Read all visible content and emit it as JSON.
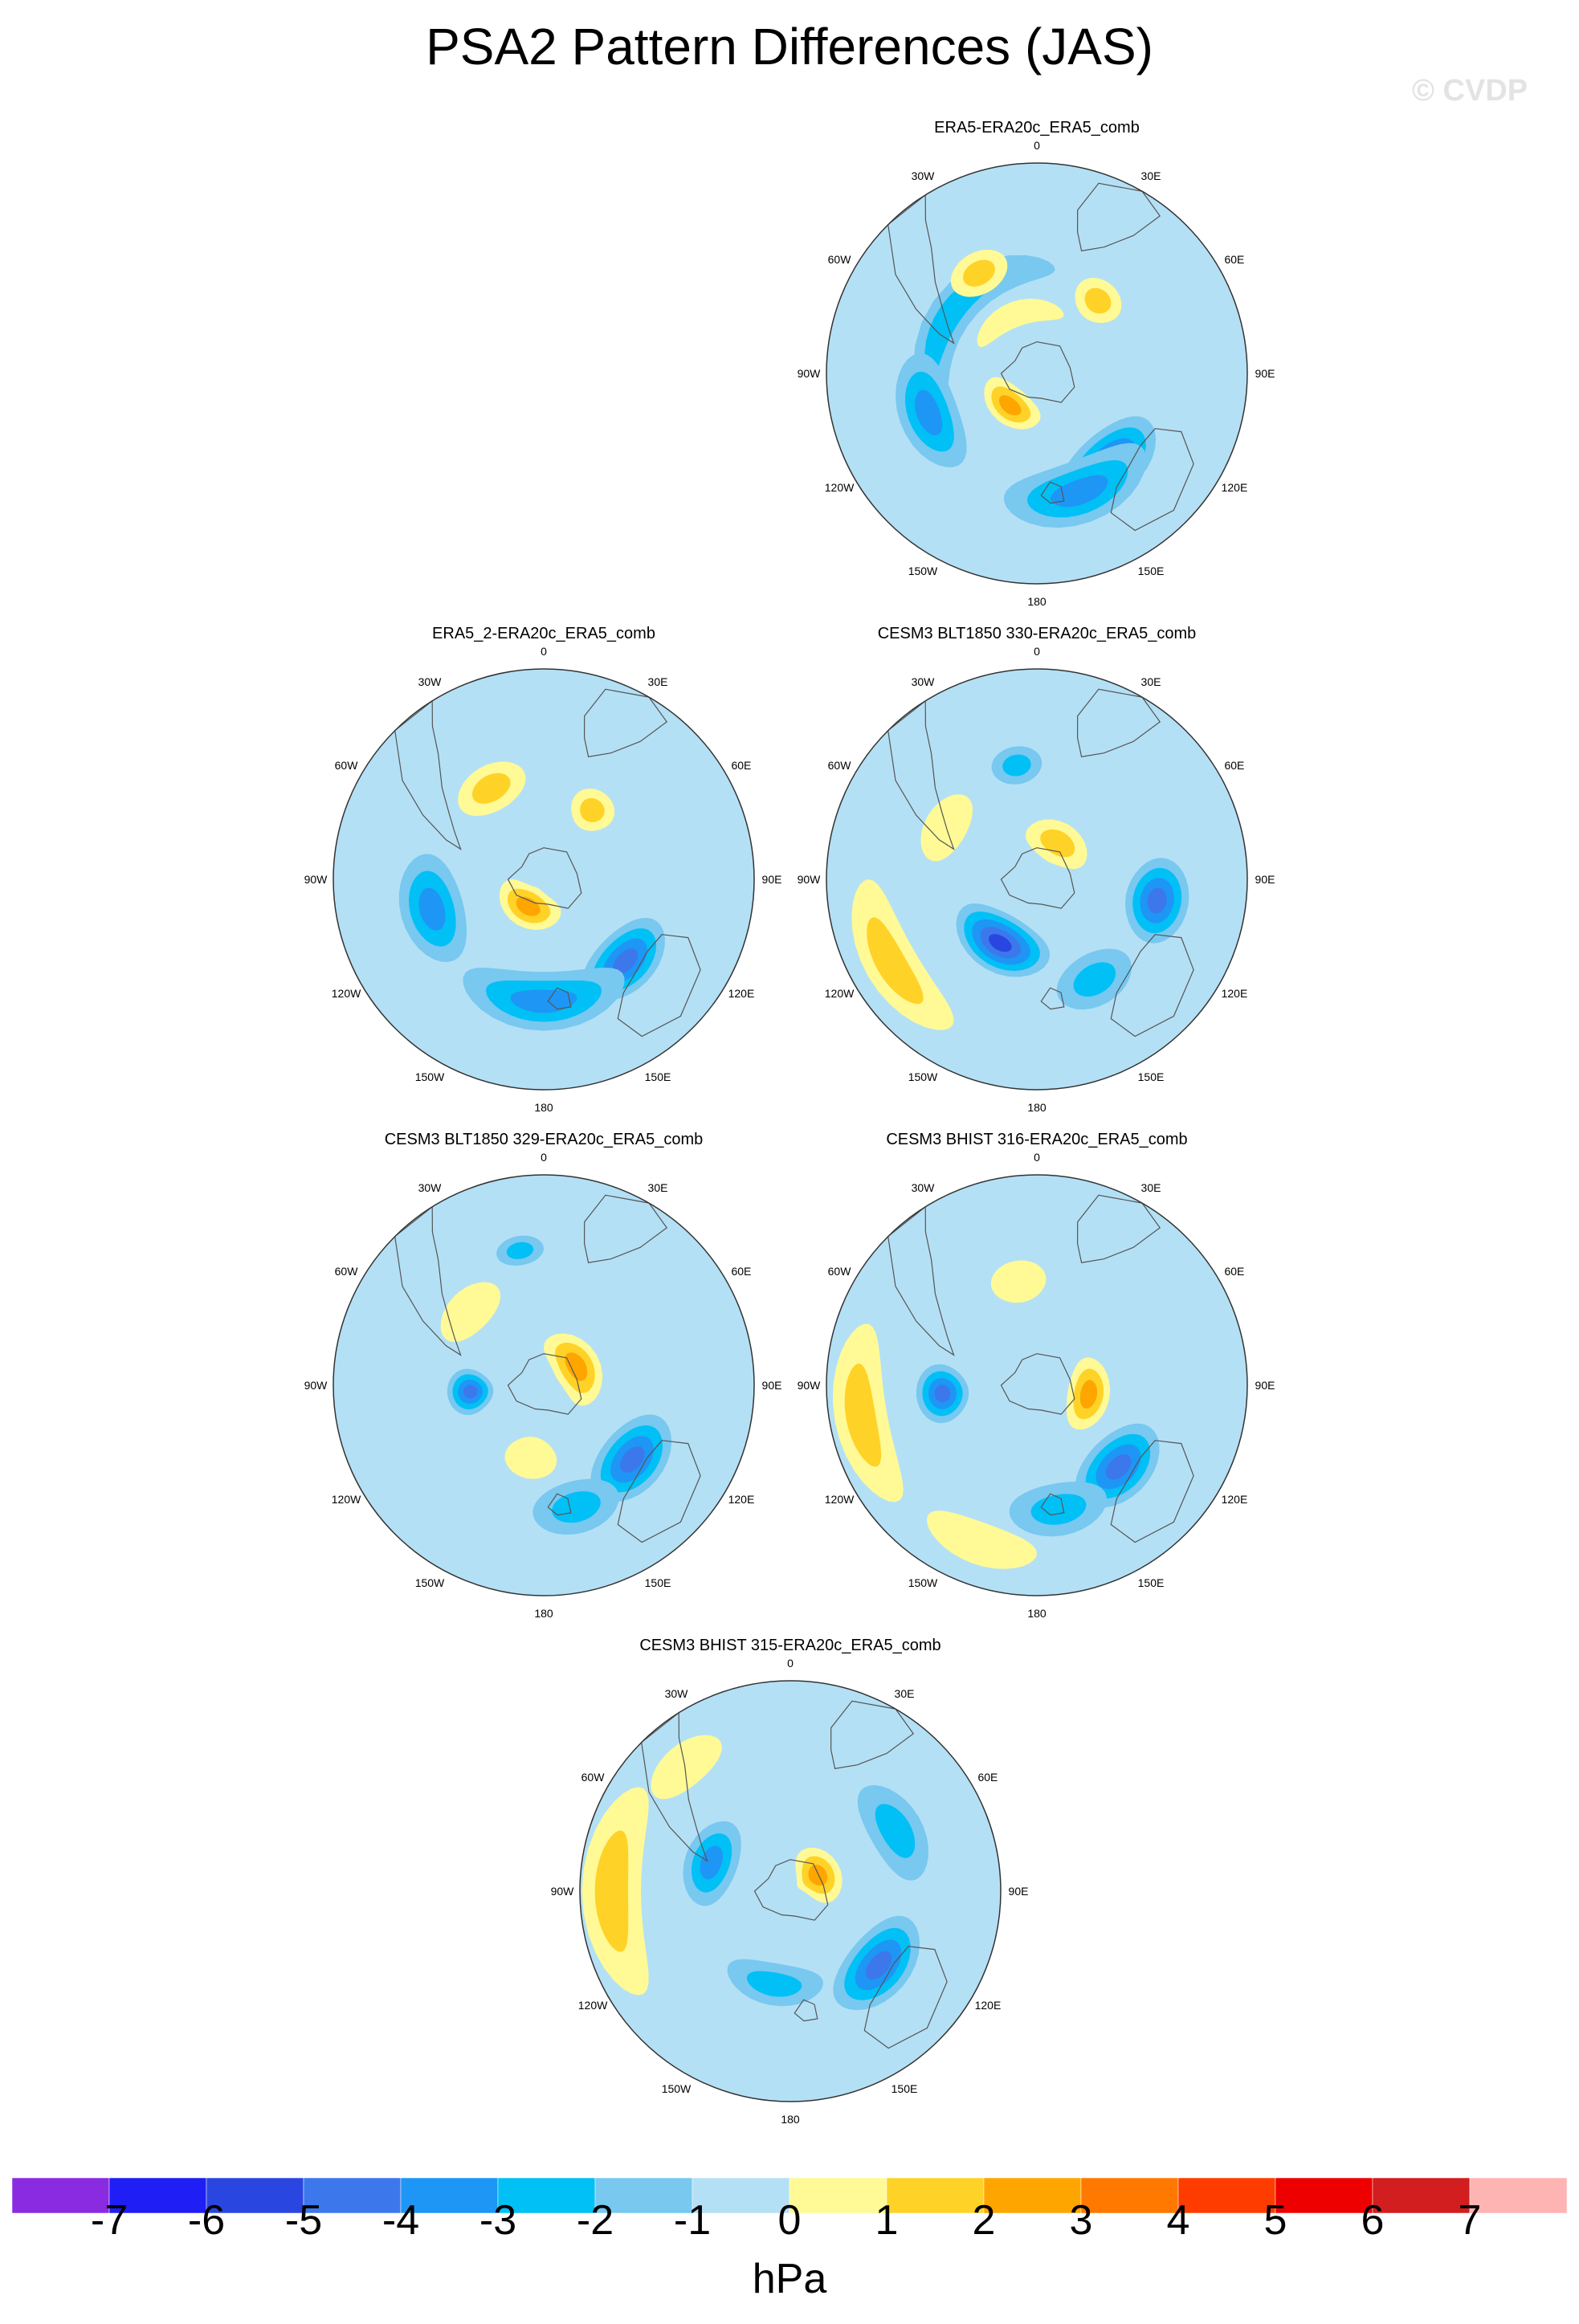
{
  "figure": {
    "title": "PSA2 Pattern Differences (JAS)",
    "watermark": "© CVDP",
    "lon_labels": [
      "0",
      "30E",
      "60E",
      "90E",
      "120E",
      "150E",
      "180",
      "150W",
      "120W",
      "90W",
      "60W",
      "30W"
    ]
  },
  "panels": [
    {
      "title": "ERA5-ERA20c_ERA5_comb",
      "anomalies": [
        {
          "lon": -55,
          "r": 0.5,
          "level": -1.6,
          "aw": 130,
          "ar": 0.2
        },
        {
          "lon": -110,
          "r": 0.55,
          "level": -2.4,
          "aw": 60,
          "ar": 0.28
        },
        {
          "lon": 140,
          "r": 0.55,
          "level": -3.5,
          "aw": 55,
          "ar": 0.3
        },
        {
          "lon": 160,
          "r": 0.6,
          "level": -2.2,
          "aw": 70,
          "ar": 0.3
        },
        {
          "lon": -140,
          "r": 0.2,
          "level": 2.4,
          "aw": 90,
          "ar": 0.18
        },
        {
          "lon": -30,
          "r": 0.55,
          "level": 1.5,
          "aw": 30,
          "ar": 0.2
        },
        {
          "lon": 40,
          "r": 0.45,
          "level": 1.2,
          "aw": 30,
          "ar": 0.2
        },
        {
          "lon": -20,
          "r": 0.3,
          "level": 1.0,
          "aw": 90,
          "ar": 0.12
        }
      ]
    },
    {
      "title": "ERA5_2-ERA20c_ERA5_comb",
      "anomalies": [
        {
          "lon": -105,
          "r": 0.55,
          "level": -3.0,
          "aw": 55,
          "ar": 0.3
        },
        {
          "lon": 135,
          "r": 0.55,
          "level": -3.3,
          "aw": 50,
          "ar": 0.28
        },
        {
          "lon": 180,
          "r": 0.58,
          "level": -2.5,
          "aw": 80,
          "ar": 0.28
        },
        {
          "lon": -150,
          "r": 0.15,
          "level": 2.4,
          "aw": 120,
          "ar": 0.2
        },
        {
          "lon": -30,
          "r": 0.5,
          "level": 1.2,
          "aw": 40,
          "ar": 0.22
        },
        {
          "lon": 35,
          "r": 0.4,
          "level": 1.2,
          "aw": 30,
          "ar": 0.2
        }
      ]
    },
    {
      "title": "CESM3 BLT1850 330-ERA20c_ERA5_comb",
      "anomalies": [
        {
          "lon": -150,
          "r": 0.35,
          "level": -4.5,
          "aw": 80,
          "ar": 0.28
        },
        {
          "lon": 100,
          "r": 0.58,
          "level": -3.5,
          "aw": 40,
          "ar": 0.3
        },
        {
          "lon": 150,
          "r": 0.55,
          "level": -2.0,
          "aw": 40,
          "ar": 0.25
        },
        {
          "lon": -10,
          "r": 0.55,
          "level": -1.5,
          "aw": 25,
          "ar": 0.18
        },
        {
          "lon": -120,
          "r": 0.8,
          "level": 1.2,
          "aw": 60,
          "ar": 0.25
        },
        {
          "lon": -60,
          "r": 0.5,
          "level": 1.0,
          "aw": 40,
          "ar": 0.2
        },
        {
          "lon": 30,
          "r": 0.2,
          "level": 1.5,
          "aw": 90,
          "ar": 0.2
        }
      ]
    },
    {
      "title": "CESM3 BLT1850 329-ERA20c_ERA5_comb",
      "anomalies": [
        {
          "lon": -95,
          "r": 0.35,
          "level": -3.5,
          "aw": 35,
          "ar": 0.22
        },
        {
          "lon": 130,
          "r": 0.55,
          "level": -3.2,
          "aw": 50,
          "ar": 0.3
        },
        {
          "lon": 165,
          "r": 0.6,
          "level": -2.0,
          "aw": 40,
          "ar": 0.25
        },
        {
          "lon": -10,
          "r": 0.65,
          "level": -1.5,
          "aw": 20,
          "ar": 0.14
        },
        {
          "lon": 60,
          "r": 0.18,
          "level": 2.4,
          "aw": 120,
          "ar": 0.22
        },
        {
          "lon": -45,
          "r": 0.5,
          "level": 1.0,
          "aw": 40,
          "ar": 0.2
        },
        {
          "lon": -170,
          "r": 0.35,
          "level": 1.0,
          "aw": 40,
          "ar": 0.2
        }
      ]
    },
    {
      "title": "CESM3 BHIST 316-ERA20c_ERA5_comb",
      "anomalies": [
        {
          "lon": -95,
          "r": 0.45,
          "level": -3.5,
          "aw": 35,
          "ar": 0.25
        },
        {
          "lon": 135,
          "r": 0.55,
          "level": -3.3,
          "aw": 50,
          "ar": 0.3
        },
        {
          "lon": 170,
          "r": 0.6,
          "level": -2.0,
          "aw": 45,
          "ar": 0.25
        },
        {
          "lon": 100,
          "r": 0.25,
          "level": 2.4,
          "aw": 80,
          "ar": 0.2
        },
        {
          "lon": -100,
          "r": 0.85,
          "level": 1.2,
          "aw": 60,
          "ar": 0.25
        },
        {
          "lon": -160,
          "r": 0.8,
          "level": 1.0,
          "aw": 40,
          "ar": 0.2
        },
        {
          "lon": -10,
          "r": 0.5,
          "level": 1.0,
          "aw": 30,
          "ar": 0.2
        }
      ]
    },
    {
      "title": "CESM3 BHIST 315-ERA20c_ERA5_comb",
      "anomalies": [
        {
          "lon": -70,
          "r": 0.4,
          "level": -3.0,
          "aw": 60,
          "ar": 0.25
        },
        {
          "lon": 130,
          "r": 0.55,
          "level": -3.5,
          "aw": 55,
          "ar": 0.3
        },
        {
          "lon": 60,
          "r": 0.58,
          "level": -2.0,
          "aw": 50,
          "ar": 0.25
        },
        {
          "lon": -170,
          "r": 0.45,
          "level": -1.5,
          "aw": 60,
          "ar": 0.2
        },
        {
          "lon": 60,
          "r": 0.15,
          "level": 2.4,
          "aw": 100,
          "ar": 0.22
        },
        {
          "lon": -90,
          "r": 0.85,
          "level": 1.3,
          "aw": 70,
          "ar": 0.28
        },
        {
          "lon": -40,
          "r": 0.78,
          "level": 1.0,
          "aw": 30,
          "ar": 0.2
        }
      ]
    }
  ],
  "colorbar": {
    "unit": "hPa",
    "tick_labels": [
      "-7",
      "-6",
      "-5",
      "-4",
      "-3",
      "-2",
      "-1",
      "0",
      "1",
      "2",
      "3",
      "4",
      "5",
      "6",
      "7"
    ],
    "colors": [
      "#8a2be2",
      "#1e1ef5",
      "#2a46e0",
      "#3c78eb",
      "#1e96f5",
      "#00c0f5",
      "#78c8f0",
      "#b4e0f5",
      "#fffa96",
      "#ffd228",
      "#ffa500",
      "#ff7800",
      "#ff3c00",
      "#ee0000",
      "#d21e1e",
      "#ffb4b4"
    ]
  }
}
